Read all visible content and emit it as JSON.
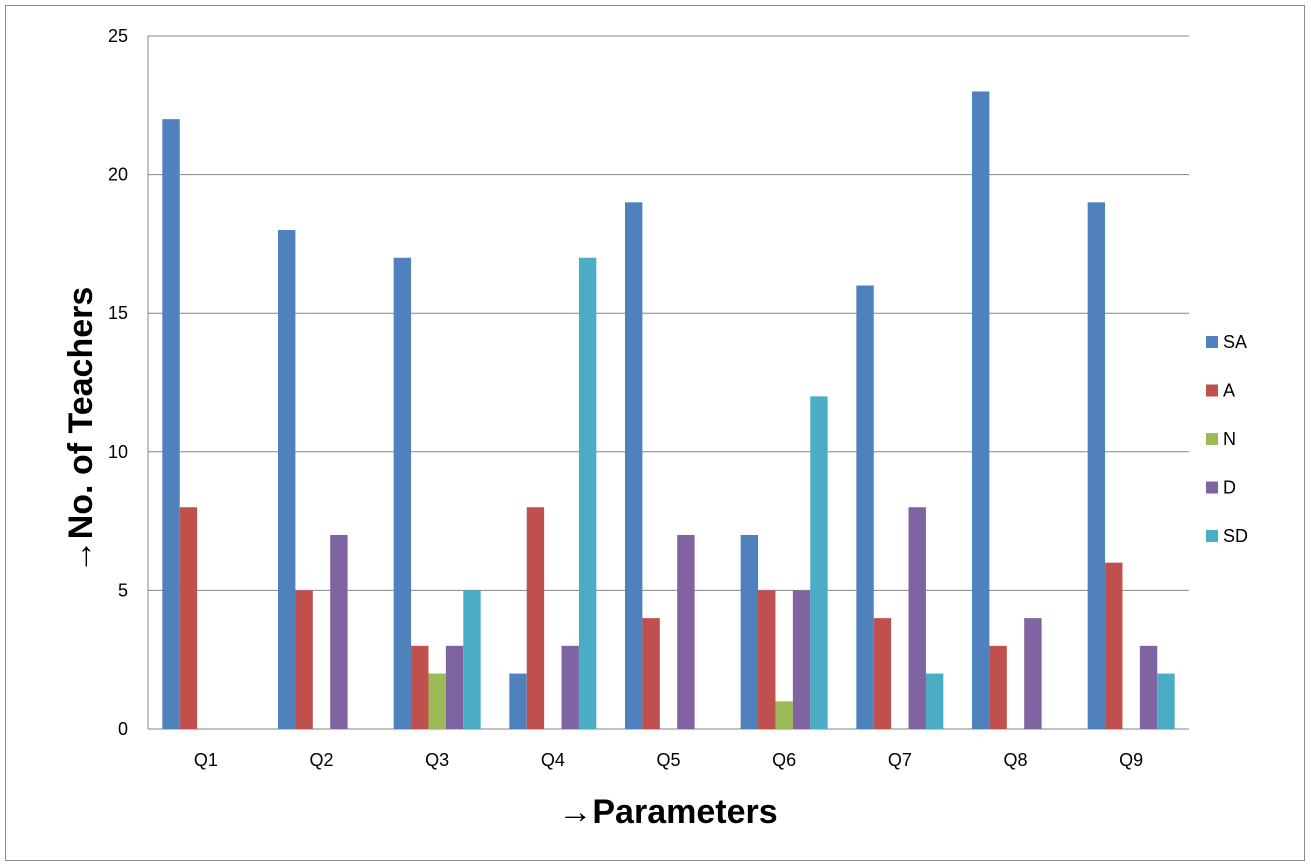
{
  "chart_data": {
    "type": "bar",
    "title": "",
    "xlabel": "→Parameters",
    "ylabel": "→No. of  Teachers",
    "categories": [
      "Q1",
      "Q2",
      "Q3",
      "Q4",
      "Q5",
      "Q6",
      "Q7",
      "Q8",
      "Q9"
    ],
    "series": [
      {
        "name": "SA",
        "color": "#4F81BD",
        "values": [
          22,
          18,
          17,
          2,
          19,
          7,
          16,
          23,
          19
        ]
      },
      {
        "name": "A",
        "color": "#C0504D",
        "values": [
          8,
          5,
          3,
          8,
          4,
          5,
          4,
          3,
          6
        ]
      },
      {
        "name": "N",
        "color": "#9BBB59",
        "values": [
          0,
          0,
          2,
          0,
          0,
          1,
          0,
          0,
          0
        ]
      },
      {
        "name": "D",
        "color": "#8064A2",
        "values": [
          0,
          7,
          3,
          3,
          7,
          5,
          8,
          4,
          3
        ]
      },
      {
        "name": "SD",
        "color": "#4BACC6",
        "values": [
          0,
          0,
          5,
          17,
          0,
          12,
          2,
          0,
          2
        ]
      }
    ],
    "ylim": [
      0,
      25
    ],
    "yticks": [
      "0",
      "5",
      "10",
      "15",
      "20",
      "25"
    ],
    "grid": true,
    "legend": "right"
  }
}
